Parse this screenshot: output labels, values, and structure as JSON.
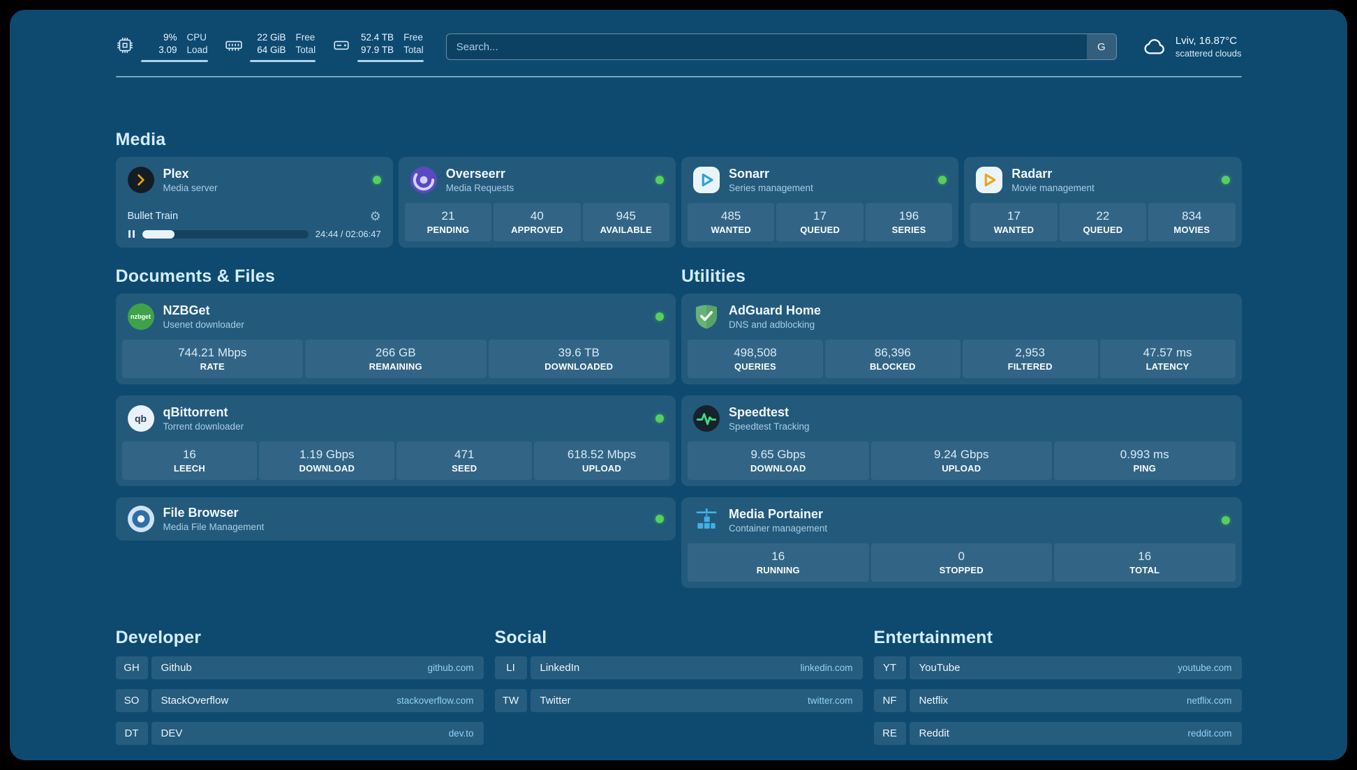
{
  "colors": {
    "background": "#0e4a70",
    "card": "rgba(255,255,255,0.09)",
    "status_online": "#55d05c",
    "link": "#8ed2f4",
    "plex_accent": "#e5a00d"
  },
  "icons": {
    "gear": "⚙"
  },
  "topbar": {
    "cpu": {
      "rows": [
        {
          "value": "9%",
          "label": "CPU"
        },
        {
          "value": "3.09",
          "label": "Load"
        }
      ]
    },
    "memory": {
      "rows": [
        {
          "value": "22 GiB",
          "label": "Free"
        },
        {
          "value": "64 GiB",
          "label": "Total"
        }
      ]
    },
    "disk": {
      "rows": [
        {
          "value": "52.4 TB",
          "label": "Free"
        },
        {
          "value": "97.9 TB",
          "label": "Total"
        }
      ]
    },
    "search": {
      "placeholder": "Search...",
      "engine": "G"
    },
    "weather": {
      "summary": "Lviv, 16.87°C",
      "condition": "scattered clouds"
    }
  },
  "media": {
    "title": "Media",
    "apps": [
      {
        "name": "Plex",
        "subtitle": "Media server",
        "online": true,
        "player": {
          "title": "Bullet Train",
          "time": "24:44 / 02:06:47",
          "progress_percent": 19.5
        }
      },
      {
        "name": "Overseerr",
        "subtitle": "Media Requests",
        "online": true,
        "stats": [
          {
            "value": "21",
            "label": "PENDING"
          },
          {
            "value": "40",
            "label": "APPROVED"
          },
          {
            "value": "945",
            "label": "AVAILABLE"
          }
        ]
      },
      {
        "name": "Sonarr",
        "subtitle": "Series management",
        "online": true,
        "stats": [
          {
            "value": "485",
            "label": "WANTED"
          },
          {
            "value": "17",
            "label": "QUEUED"
          },
          {
            "value": "196",
            "label": "SERIES"
          }
        ]
      },
      {
        "name": "Radarr",
        "subtitle": "Movie management",
        "online": true,
        "stats": [
          {
            "value": "17",
            "label": "WANTED"
          },
          {
            "value": "22",
            "label": "QUEUED"
          },
          {
            "value": "834",
            "label": "MOVIES"
          }
        ]
      }
    ]
  },
  "documents": {
    "title": "Documents & Files",
    "apps": [
      {
        "name": "NZBGet",
        "subtitle": "Usenet downloader",
        "online": true,
        "icon_text": "nzbget",
        "stats": [
          {
            "value": "744.21 Mbps",
            "label": "RATE"
          },
          {
            "value": "266 GB",
            "label": "REMAINING"
          },
          {
            "value": "39.6 TB",
            "label": "DOWNLOADED"
          }
        ]
      },
      {
        "name": "qBittorrent",
        "subtitle": "Torrent downloader",
        "online": true,
        "icon_text": "qb",
        "stats": [
          {
            "value": "16",
            "label": "LEECH"
          },
          {
            "value": "1.19 Gbps",
            "label": "DOWNLOAD"
          },
          {
            "value": "471",
            "label": "SEED"
          },
          {
            "value": "618.52 Mbps",
            "label": "UPLOAD"
          }
        ]
      },
      {
        "name": "File Browser",
        "subtitle": "Media File Management",
        "online": true
      }
    ]
  },
  "utilities": {
    "title": "Utilities",
    "apps": [
      {
        "name": "AdGuard Home",
        "subtitle": "DNS and adblocking",
        "online": false,
        "stats": [
          {
            "value": "498,508",
            "label": "QUERIES"
          },
          {
            "value": "86,396",
            "label": "BLOCKED"
          },
          {
            "value": "2,953",
            "label": "FILTERED"
          },
          {
            "value": "47.57 ms",
            "label": "LATENCY"
          }
        ]
      },
      {
        "name": "Speedtest",
        "subtitle": "Speedtest Tracking",
        "online": false,
        "stats": [
          {
            "value": "9.65 Gbps",
            "label": "DOWNLOAD"
          },
          {
            "value": "9.24 Gbps",
            "label": "UPLOAD"
          },
          {
            "value": "0.993 ms",
            "label": "PING"
          }
        ]
      },
      {
        "name": "Media Portainer",
        "subtitle": "Container management",
        "online": true,
        "stats": [
          {
            "value": "16",
            "label": "RUNNING"
          },
          {
            "value": "0",
            "label": "STOPPED"
          },
          {
            "value": "16",
            "label": "TOTAL"
          }
        ]
      }
    ]
  },
  "bookmarks": {
    "developer": {
      "title": "Developer",
      "items": [
        {
          "abbr": "GH",
          "name": "Github",
          "domain": "github.com"
        },
        {
          "abbr": "SO",
          "name": "StackOverflow",
          "domain": "stackoverflow.com"
        },
        {
          "abbr": "DT",
          "name": "DEV",
          "domain": "dev.to"
        }
      ]
    },
    "social": {
      "title": "Social",
      "items": [
        {
          "abbr": "LI",
          "name": "LinkedIn",
          "domain": "linkedin.com"
        },
        {
          "abbr": "TW",
          "name": "Twitter",
          "domain": "twitter.com"
        }
      ]
    },
    "entertainment": {
      "title": "Entertainment",
      "items": [
        {
          "abbr": "YT",
          "name": "YouTube",
          "domain": "youtube.com"
        },
        {
          "abbr": "NF",
          "name": "Netflix",
          "domain": "netflix.com"
        },
        {
          "abbr": "RE",
          "name": "Reddit",
          "domain": "reddit.com"
        }
      ]
    }
  }
}
